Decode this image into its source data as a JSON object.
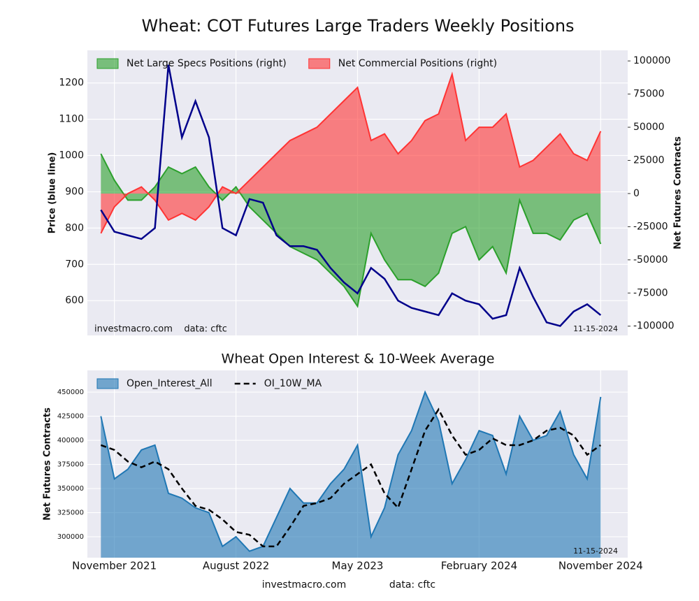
{
  "chart_data": [
    {
      "type": "line",
      "title": "Wheat: COT Futures Large Traders Weekly Positions",
      "ylabel": "Price (blue line)",
      "y2label": "Net Futures Contracts",
      "annotations": [
        "investmacro.com    data: cftc",
        "11-15-2024"
      ],
      "legend": "upper left",
      "grid": true,
      "x": [
        "2021-10",
        "2021-11",
        "2021-12",
        "2022-01",
        "2022-02",
        "2022-03",
        "2022-04",
        "2022-05",
        "2022-06",
        "2022-07",
        "2022-08",
        "2022-09",
        "2022-10",
        "2022-11",
        "2022-12",
        "2023-01",
        "2023-02",
        "2023-03",
        "2023-04",
        "2023-05",
        "2023-06",
        "2023-07",
        "2023-08",
        "2023-09",
        "2023-10",
        "2023-11",
        "2023-12",
        "2024-01",
        "2024-02",
        "2024-03",
        "2024-04",
        "2024-05",
        "2024-06",
        "2024-07",
        "2024-08",
        "2024-09",
        "2024-10",
        "2024-11"
      ],
      "xlim": [
        "2021-09",
        "2025-01"
      ],
      "ylim": [
        504,
        1290
      ],
      "yticks": [
        600,
        700,
        800,
        900,
        1000,
        1100,
        1200
      ],
      "y2lim": [
        -107000,
        108000
      ],
      "y2ticks": [
        -100000,
        -75000,
        -50000,
        -25000,
        0,
        25000,
        50000,
        75000,
        100000
      ],
      "series": [
        {
          "name": "Net Large Specs Positions (right)",
          "color": "#2ca02c",
          "style": "area",
          "axis": "y2",
          "values": [
            30000,
            10000,
            -5000,
            -5000,
            5000,
            20000,
            15000,
            20000,
            5000,
            -5000,
            5000,
            -10000,
            -20000,
            -30000,
            -40000,
            -45000,
            -50000,
            -60000,
            -70000,
            -85000,
            -30000,
            -50000,
            -65000,
            -65000,
            -70000,
            -60000,
            -30000,
            -25000,
            -50000,
            -40000,
            -60000,
            -5000,
            -30000,
            -30000,
            -35000,
            -20000,
            -15000,
            -38000
          ]
        },
        {
          "name": "Net Commercial Positions (right)",
          "color": "#ff3333",
          "style": "area",
          "axis": "y2",
          "values": [
            -30000,
            -10000,
            0,
            5000,
            -5000,
            -20000,
            -15000,
            -20000,
            -10000,
            5000,
            0,
            10000,
            20000,
            30000,
            40000,
            45000,
            50000,
            60000,
            70000,
            80000,
            40000,
            45000,
            30000,
            40000,
            55000,
            60000,
            90000,
            40000,
            50000,
            50000,
            60000,
            20000,
            25000,
            35000,
            45000,
            30000,
            25000,
            47000
          ]
        },
        {
          "color": "#00008b",
          "style": "line",
          "values": [
            850,
            790,
            780,
            770,
            800,
            1250,
            1050,
            1150,
            1050,
            800,
            780,
            880,
            870,
            780,
            750,
            750,
            740,
            690,
            650,
            620,
            690,
            660,
            600,
            580,
            570,
            560,
            620,
            600,
            590,
            550,
            560,
            690,
            610,
            540,
            530,
            570,
            590,
            560
          ]
        }
      ]
    },
    {
      "type": "line",
      "title": "Wheat Open Interest & 10-Week Average",
      "ylabel": "Net Futures Contracts",
      "annotations": [
        "11-15-2024"
      ],
      "legend": "upper left",
      "grid": true,
      "x": [
        "2021-10",
        "2021-11",
        "2021-12",
        "2022-01",
        "2022-02",
        "2022-03",
        "2022-04",
        "2022-05",
        "2022-06",
        "2022-07",
        "2022-08",
        "2022-09",
        "2022-10",
        "2022-11",
        "2022-12",
        "2023-01",
        "2023-02",
        "2023-03",
        "2023-04",
        "2023-05",
        "2023-06",
        "2023-07",
        "2023-08",
        "2023-09",
        "2023-10",
        "2023-11",
        "2023-12",
        "2024-01",
        "2024-02",
        "2024-03",
        "2024-04",
        "2024-05",
        "2024-06",
        "2024-07",
        "2024-08",
        "2024-09",
        "2024-10",
        "2024-11"
      ],
      "xlim": [
        "2021-09",
        "2025-01"
      ],
      "xticks": [
        {
          "value": "2021-11",
          "label": "November 2021"
        },
        {
          "value": "2022-08",
          "label": "August 2022"
        },
        {
          "value": "2023-05",
          "label": "May 2023"
        },
        {
          "value": "2024-02",
          "label": "February 2024"
        },
        {
          "value": "2024-11",
          "label": "November 2024"
        }
      ],
      "ylim": [
        278300,
        472500
      ],
      "yticks": [
        300000,
        325000,
        350000,
        375000,
        400000,
        425000,
        450000
      ],
      "series": [
        {
          "name": "Open_Interest_All",
          "color": "#1f77b4",
          "style": "area",
          "values": [
            425000,
            360000,
            370000,
            390000,
            395000,
            345000,
            340000,
            330000,
            325000,
            290000,
            300000,
            285000,
            290000,
            320000,
            350000,
            335000,
            335000,
            355000,
            370000,
            395000,
            300000,
            330000,
            385000,
            410000,
            450000,
            420000,
            355000,
            380000,
            410000,
            405000,
            365000,
            425000,
            400000,
            405000,
            430000,
            385000,
            360000,
            445000
          ]
        },
        {
          "name": "OI_10W_MA",
          "color": "#000000",
          "style": "dashed",
          "values": [
            395000,
            390000,
            378000,
            372000,
            378000,
            370000,
            350000,
            332000,
            328000,
            318000,
            305000,
            302000,
            290000,
            290000,
            310000,
            332000,
            335000,
            340000,
            355000,
            365000,
            375000,
            345000,
            330000,
            370000,
            410000,
            432000,
            405000,
            385000,
            390000,
            402000,
            395000,
            395000,
            400000,
            410000,
            413000,
            405000,
            385000,
            395000
          ]
        }
      ]
    }
  ],
  "footer": [
    "investmacro.com",
    "data: cftc"
  ]
}
